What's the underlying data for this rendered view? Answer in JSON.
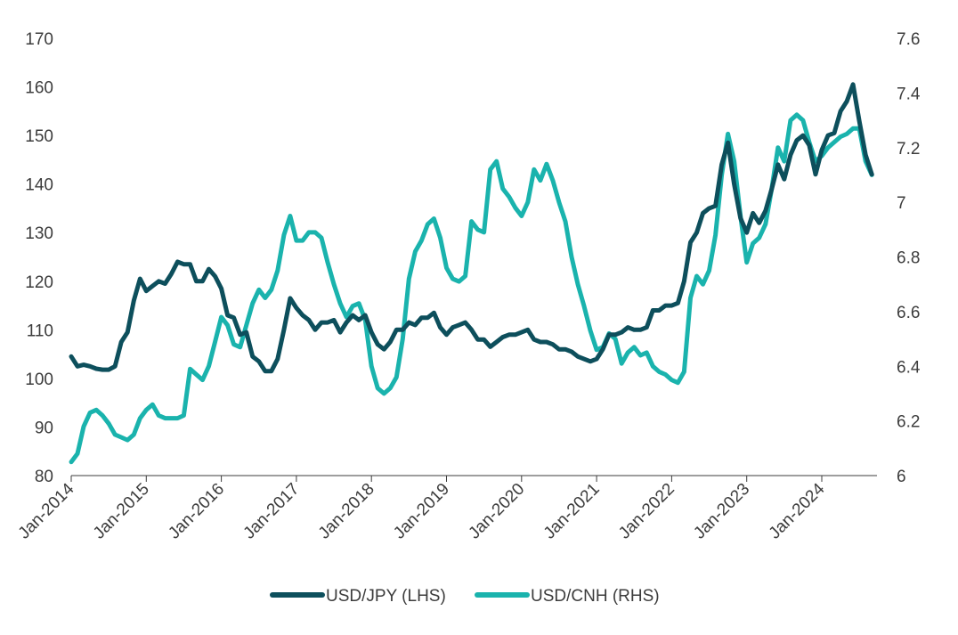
{
  "chart_data": {
    "type": "line",
    "title": "",
    "xlabel": "",
    "ylabel_left": "",
    "ylabel_right": "",
    "x_ticks": [
      "Jan-2014",
      "Jan-2015",
      "Jan-2016",
      "Jan-2017",
      "Jan-2018",
      "Jan-2019",
      "Jan-2020",
      "Jan-2021",
      "Jan-2022",
      "Jan-2023",
      "Jan-2024"
    ],
    "x_range": [
      "2014-01",
      "2024-09"
    ],
    "y_left": {
      "ticks": [
        80,
        90,
        100,
        110,
        120,
        130,
        140,
        150,
        160,
        170
      ],
      "ylim": [
        80,
        170
      ]
    },
    "y_right": {
      "ticks": [
        "6",
        "6.2",
        "6.4",
        "6.6",
        "6.8",
        "7",
        "7.2",
        "7.4",
        "7.6"
      ],
      "ylim": [
        6.0,
        7.6
      ]
    },
    "grid": false,
    "legend_position": "bottom-center",
    "series": [
      {
        "name": "USD/JPY (LHS)",
        "axis": "left",
        "color": "#0d4f5c",
        "points": [
          [
            "2014-01",
            104.5
          ],
          [
            "2014-02",
            102.5
          ],
          [
            "2014-03",
            102.8
          ],
          [
            "2014-04",
            102.5
          ],
          [
            "2014-05",
            102.0
          ],
          [
            "2014-06",
            101.8
          ],
          [
            "2014-07",
            101.8
          ],
          [
            "2014-08",
            102.5
          ],
          [
            "2014-09",
            107.5
          ],
          [
            "2014-10",
            109.5
          ],
          [
            "2014-11",
            116.0
          ],
          [
            "2014-12",
            120.5
          ],
          [
            "2015-01",
            118.0
          ],
          [
            "2015-02",
            119.0
          ],
          [
            "2015-03",
            120.0
          ],
          [
            "2015-04",
            119.5
          ],
          [
            "2015-05",
            121.5
          ],
          [
            "2015-06",
            124.0
          ],
          [
            "2015-07",
            123.5
          ],
          [
            "2015-08",
            123.5
          ],
          [
            "2015-09",
            120.0
          ],
          [
            "2015-10",
            120.0
          ],
          [
            "2015-11",
            122.5
          ],
          [
            "2015-12",
            121.0
          ],
          [
            "2016-01",
            118.5
          ],
          [
            "2016-02",
            113.0
          ],
          [
            "2016-03",
            112.5
          ],
          [
            "2016-04",
            109.0
          ],
          [
            "2016-05",
            109.5
          ],
          [
            "2016-06",
            104.5
          ],
          [
            "2016-07",
            103.5
          ],
          [
            "2016-08",
            101.5
          ],
          [
            "2016-09",
            101.5
          ],
          [
            "2016-10",
            104.0
          ],
          [
            "2016-11",
            110.0
          ],
          [
            "2016-12",
            116.5
          ],
          [
            "2017-01",
            114.5
          ],
          [
            "2017-02",
            113.0
          ],
          [
            "2017-03",
            112.0
          ],
          [
            "2017-04",
            110.0
          ],
          [
            "2017-05",
            111.5
          ],
          [
            "2017-06",
            111.5
          ],
          [
            "2017-07",
            112.0
          ],
          [
            "2017-08",
            109.5
          ],
          [
            "2017-09",
            111.5
          ],
          [
            "2017-10",
            113.0
          ],
          [
            "2017-11",
            112.0
          ],
          [
            "2017-12",
            113.0
          ],
          [
            "2018-01",
            109.5
          ],
          [
            "2018-02",
            107.0
          ],
          [
            "2018-03",
            106.0
          ],
          [
            "2018-04",
            107.5
          ],
          [
            "2018-05",
            110.0
          ],
          [
            "2018-06",
            110.0
          ],
          [
            "2018-07",
            111.5
          ],
          [
            "2018-08",
            111.0
          ],
          [
            "2018-09",
            112.5
          ],
          [
            "2018-10",
            112.5
          ],
          [
            "2018-11",
            113.5
          ],
          [
            "2018-12",
            110.5
          ],
          [
            "2019-01",
            109.0
          ],
          [
            "2019-02",
            110.5
          ],
          [
            "2019-03",
            111.0
          ],
          [
            "2019-04",
            111.5
          ],
          [
            "2019-05",
            110.0
          ],
          [
            "2019-06",
            108.0
          ],
          [
            "2019-07",
            108.0
          ],
          [
            "2019-08",
            106.5
          ],
          [
            "2019-09",
            107.5
          ],
          [
            "2019-10",
            108.5
          ],
          [
            "2019-11",
            109.0
          ],
          [
            "2019-12",
            109.0
          ],
          [
            "2020-01",
            109.5
          ],
          [
            "2020-02",
            110.0
          ],
          [
            "2020-03",
            108.0
          ],
          [
            "2020-04",
            107.5
          ],
          [
            "2020-05",
            107.5
          ],
          [
            "2020-06",
            107.0
          ],
          [
            "2020-07",
            106.0
          ],
          [
            "2020-08",
            106.0
          ],
          [
            "2020-09",
            105.5
          ],
          [
            "2020-10",
            104.5
          ],
          [
            "2020-11",
            104.0
          ],
          [
            "2020-12",
            103.5
          ],
          [
            "2021-01",
            104.0
          ],
          [
            "2021-02",
            106.0
          ],
          [
            "2021-03",
            109.0
          ],
          [
            "2021-04",
            109.0
          ],
          [
            "2021-05",
            109.5
          ],
          [
            "2021-06",
            110.5
          ],
          [
            "2021-07",
            110.0
          ],
          [
            "2021-08",
            110.0
          ],
          [
            "2021-09",
            110.5
          ],
          [
            "2021-10",
            114.0
          ],
          [
            "2021-11",
            114.0
          ],
          [
            "2021-12",
            115.0
          ],
          [
            "2022-01",
            115.0
          ],
          [
            "2022-02",
            115.5
          ],
          [
            "2022-03",
            120.0
          ],
          [
            "2022-04",
            128.0
          ],
          [
            "2022-05",
            130.0
          ],
          [
            "2022-06",
            134.0
          ],
          [
            "2022-07",
            135.0
          ],
          [
            "2022-08",
            135.5
          ],
          [
            "2022-09",
            144.0
          ],
          [
            "2022-10",
            148.5
          ],
          [
            "2022-11",
            140.0
          ],
          [
            "2022-12",
            133.0
          ],
          [
            "2023-01",
            130.0
          ],
          [
            "2023-02",
            134.0
          ],
          [
            "2023-03",
            132.0
          ],
          [
            "2023-04",
            134.5
          ],
          [
            "2023-05",
            139.0
          ],
          [
            "2023-06",
            144.0
          ],
          [
            "2023-07",
            141.0
          ],
          [
            "2023-08",
            146.0
          ],
          [
            "2023-09",
            149.0
          ],
          [
            "2023-10",
            150.0
          ],
          [
            "2023-11",
            148.0
          ],
          [
            "2023-12",
            142.0
          ],
          [
            "2024-01",
            147.0
          ],
          [
            "2024-02",
            150.0
          ],
          [
            "2024-03",
            150.5
          ],
          [
            "2024-04",
            155.0
          ],
          [
            "2024-05",
            157.0
          ],
          [
            "2024-06",
            160.5
          ],
          [
            "2024-07",
            153.0
          ],
          [
            "2024-08",
            146.0
          ],
          [
            "2024-09",
            142.0
          ]
        ]
      },
      {
        "name": "USD/CNH (RHS)",
        "axis": "right",
        "color": "#1ab3ad",
        "points": [
          [
            "2014-01",
            6.05
          ],
          [
            "2014-02",
            6.08
          ],
          [
            "2014-03",
            6.18
          ],
          [
            "2014-04",
            6.23
          ],
          [
            "2014-05",
            6.24
          ],
          [
            "2014-06",
            6.22
          ],
          [
            "2014-07",
            6.19
          ],
          [
            "2014-08",
            6.15
          ],
          [
            "2014-09",
            6.14
          ],
          [
            "2014-10",
            6.13
          ],
          [
            "2014-11",
            6.15
          ],
          [
            "2014-12",
            6.21
          ],
          [
            "2015-01",
            6.24
          ],
          [
            "2015-02",
            6.26
          ],
          [
            "2015-03",
            6.22
          ],
          [
            "2015-04",
            6.21
          ],
          [
            "2015-05",
            6.21
          ],
          [
            "2015-06",
            6.21
          ],
          [
            "2015-07",
            6.22
          ],
          [
            "2015-08",
            6.39
          ],
          [
            "2015-09",
            6.37
          ],
          [
            "2015-10",
            6.35
          ],
          [
            "2015-11",
            6.4
          ],
          [
            "2015-12",
            6.49
          ],
          [
            "2016-01",
            6.58
          ],
          [
            "2016-02",
            6.55
          ],
          [
            "2016-03",
            6.48
          ],
          [
            "2016-04",
            6.47
          ],
          [
            "2016-05",
            6.55
          ],
          [
            "2016-06",
            6.63
          ],
          [
            "2016-07",
            6.68
          ],
          [
            "2016-08",
            6.65
          ],
          [
            "2016-09",
            6.68
          ],
          [
            "2016-10",
            6.75
          ],
          [
            "2016-11",
            6.88
          ],
          [
            "2016-12",
            6.95
          ],
          [
            "2017-01",
            6.86
          ],
          [
            "2017-02",
            6.86
          ],
          [
            "2017-03",
            6.89
          ],
          [
            "2017-04",
            6.89
          ],
          [
            "2017-05",
            6.87
          ],
          [
            "2017-06",
            6.78
          ],
          [
            "2017-07",
            6.7
          ],
          [
            "2017-08",
            6.63
          ],
          [
            "2017-09",
            6.58
          ],
          [
            "2017-10",
            6.62
          ],
          [
            "2017-11",
            6.63
          ],
          [
            "2017-12",
            6.57
          ],
          [
            "2018-01",
            6.4
          ],
          [
            "2018-02",
            6.32
          ],
          [
            "2018-03",
            6.3
          ],
          [
            "2018-04",
            6.32
          ],
          [
            "2018-05",
            6.36
          ],
          [
            "2018-06",
            6.5
          ],
          [
            "2018-07",
            6.72
          ],
          [
            "2018-08",
            6.82
          ],
          [
            "2018-09",
            6.86
          ],
          [
            "2018-10",
            6.92
          ],
          [
            "2018-11",
            6.94
          ],
          [
            "2018-12",
            6.87
          ],
          [
            "2019-01",
            6.76
          ],
          [
            "2019-02",
            6.72
          ],
          [
            "2019-03",
            6.71
          ],
          [
            "2019-04",
            6.73
          ],
          [
            "2019-05",
            6.93
          ],
          [
            "2019-06",
            6.9
          ],
          [
            "2019-07",
            6.89
          ],
          [
            "2019-08",
            7.12
          ],
          [
            "2019-09",
            7.15
          ],
          [
            "2019-10",
            7.05
          ],
          [
            "2019-11",
            7.02
          ],
          [
            "2019-12",
            6.98
          ],
          [
            "2020-01",
            6.95
          ],
          [
            "2020-02",
            7.0
          ],
          [
            "2020-03",
            7.12
          ],
          [
            "2020-04",
            7.08
          ],
          [
            "2020-05",
            7.14
          ],
          [
            "2020-06",
            7.08
          ],
          [
            "2020-07",
            7.0
          ],
          [
            "2020-08",
            6.93
          ],
          [
            "2020-09",
            6.8
          ],
          [
            "2020-10",
            6.7
          ],
          [
            "2020-11",
            6.62
          ],
          [
            "2020-12",
            6.53
          ],
          [
            "2021-01",
            6.46
          ],
          [
            "2021-02",
            6.47
          ],
          [
            "2021-03",
            6.52
          ],
          [
            "2021-04",
            6.5
          ],
          [
            "2021-05",
            6.41
          ],
          [
            "2021-06",
            6.45
          ],
          [
            "2021-07",
            6.47
          ],
          [
            "2021-08",
            6.44
          ],
          [
            "2021-09",
            6.45
          ],
          [
            "2021-10",
            6.4
          ],
          [
            "2021-11",
            6.38
          ],
          [
            "2021-12",
            6.37
          ],
          [
            "2022-01",
            6.35
          ],
          [
            "2022-02",
            6.34
          ],
          [
            "2022-03",
            6.38
          ],
          [
            "2022-04",
            6.65
          ],
          [
            "2022-05",
            6.73
          ],
          [
            "2022-06",
            6.7
          ],
          [
            "2022-07",
            6.75
          ],
          [
            "2022-08",
            6.88
          ],
          [
            "2022-09",
            7.1
          ],
          [
            "2022-10",
            7.25
          ],
          [
            "2022-11",
            7.15
          ],
          [
            "2022-12",
            6.95
          ],
          [
            "2023-01",
            6.78
          ],
          [
            "2023-02",
            6.85
          ],
          [
            "2023-03",
            6.87
          ],
          [
            "2023-04",
            6.92
          ],
          [
            "2023-05",
            7.05
          ],
          [
            "2023-06",
            7.2
          ],
          [
            "2023-07",
            7.15
          ],
          [
            "2023-08",
            7.3
          ],
          [
            "2023-09",
            7.32
          ],
          [
            "2023-10",
            7.3
          ],
          [
            "2023-11",
            7.22
          ],
          [
            "2023-12",
            7.15
          ],
          [
            "2024-01",
            7.17
          ],
          [
            "2024-02",
            7.2
          ],
          [
            "2024-03",
            7.22
          ],
          [
            "2024-04",
            7.24
          ],
          [
            "2024-05",
            7.25
          ],
          [
            "2024-06",
            7.27
          ],
          [
            "2024-07",
            7.27
          ],
          [
            "2024-08",
            7.15
          ],
          [
            "2024-09",
            7.1
          ]
        ]
      }
    ]
  }
}
